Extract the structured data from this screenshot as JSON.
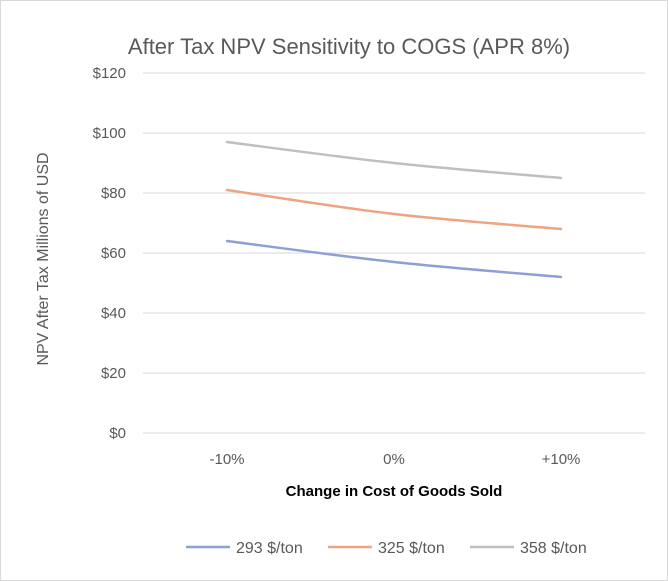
{
  "chart_data": {
    "type": "line",
    "title": "After Tax NPV Sensitivity to COGS (APR 8%)",
    "xlabel": "Change in Cost of Goods Sold",
    "ylabel": "NPV After Tax Millions of USD",
    "categories": [
      "-10%",
      "0%",
      "+10%"
    ],
    "ylim": [
      0,
      120
    ],
    "yticks": [
      0,
      20,
      40,
      60,
      80,
      100,
      120
    ],
    "ytick_labels": [
      "$0",
      "$20",
      "$40",
      "$60",
      "$80",
      "$100",
      "$120"
    ],
    "grid": true,
    "legend_position": "bottom",
    "series": [
      {
        "name": "293 $/ton",
        "color": "#8e9fd4",
        "values": [
          64,
          57,
          52
        ]
      },
      {
        "name": "325 $/ton",
        "color": "#f0a383",
        "values": [
          81,
          73,
          68
        ]
      },
      {
        "name": "358 $/ton",
        "color": "#bfbfbf",
        "values": [
          97,
          90,
          85
        ]
      }
    ]
  }
}
